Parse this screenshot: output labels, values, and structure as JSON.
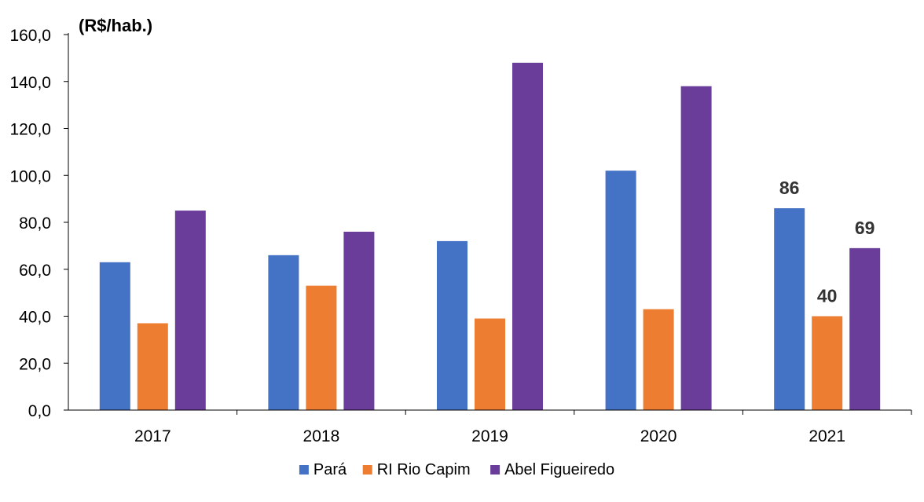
{
  "chart_data": {
    "type": "bar",
    "unit_label": "(R$/hab.)",
    "categories": [
      "2017",
      "2018",
      "2019",
      "2020",
      "2021"
    ],
    "series": [
      {
        "name": "Pará",
        "color": "#4472C4",
        "values": [
          63,
          66,
          72,
          102,
          86
        ]
      },
      {
        "name": "RI Rio Capim",
        "color": "#ED7D31",
        "values": [
          37,
          53,
          39,
          43,
          40
        ]
      },
      {
        "name": "Abel Figueiredo",
        "color": "#6A3D9A",
        "values": [
          85,
          76,
          148,
          138,
          69
        ]
      }
    ],
    "y_ticks": [
      "0,0",
      "20,0",
      "40,0",
      "60,0",
      "80,0",
      "100,0",
      "120,0",
      "140,0",
      "160,0"
    ],
    "ylim": [
      0,
      160
    ],
    "data_labels": [
      {
        "series": "Pará",
        "category": "2021",
        "text": "86"
      },
      {
        "series": "RI Rio Capim",
        "category": "2021",
        "text": "40"
      },
      {
        "series": "Abel Figueiredo",
        "category": "2021",
        "text": "69"
      }
    ],
    "grid": false,
    "legend_position": "bottom"
  }
}
